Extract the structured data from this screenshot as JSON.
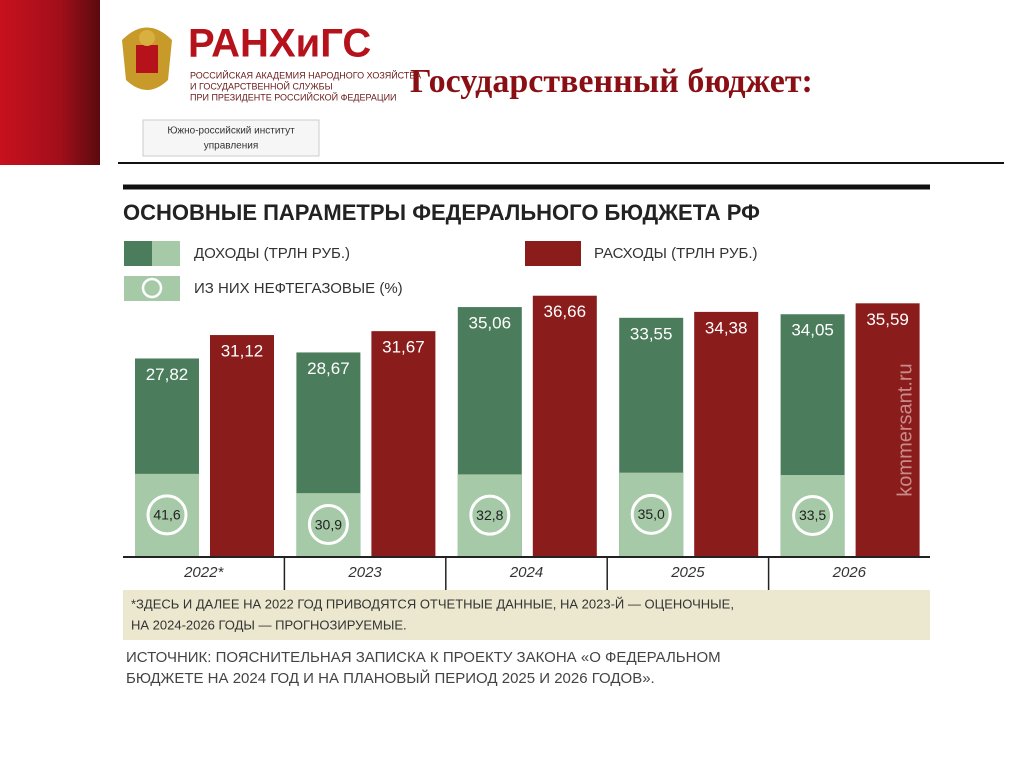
{
  "header": {
    "logo_title": "РАНХиГС",
    "logo_lines": [
      "РОССИЙСКАЯ АКАДЕМИЯ НАРОДНОГО ХОЗЯЙСТВА",
      "И ГОСУДАРСТВЕННОЙ СЛУЖБЫ",
      "ПРИ ПРЕЗИДЕНТЕ РОССИЙСКОЙ ФЕДЕРАЦИИ"
    ],
    "institute": [
      "Южно-российский институт",
      "управления"
    ],
    "slide_title": "Государственный бюджет:"
  },
  "chart_data": {
    "type": "bar",
    "title": "ОСНОВНЫЕ ПАРАМЕТРЫ ФЕДЕРАЛЬНОГО БЮДЖЕТА РФ",
    "categories": [
      "2022*",
      "2023",
      "2024",
      "2025",
      "2026"
    ],
    "series": [
      {
        "name": "ДОХОДЫ (ТРЛН РУБ.)",
        "color": "#4b7d5c",
        "values": [
          27.82,
          28.67,
          35.06,
          33.55,
          34.05
        ],
        "value_labels": [
          "27,82",
          "28,67",
          "35,06",
          "33,55",
          "34,05"
        ]
      },
      {
        "name": "РАСХОДЫ (ТРЛН РУБ.)",
        "color": "#8a1c1c",
        "values": [
          31.12,
          31.67,
          36.66,
          34.38,
          35.59
        ],
        "value_labels": [
          "31,12",
          "31,67",
          "36,66",
          "34,38",
          "35,59"
        ]
      },
      {
        "name": "ИЗ НИХ НЕФТЕГАЗОВЫЕ (%)",
        "color": "#a6c9a8",
        "values": [
          41.6,
          30.9,
          32.8,
          35.0,
          33.5
        ],
        "value_labels": [
          "41,6",
          "30,9",
          "32,8",
          "35,0",
          "33,5"
        ]
      }
    ],
    "watermark": "kommersant.ru",
    "footnote": [
      "*ЗДЕСЬ И ДАЛЕЕ НА 2022 ГОД ПРИВОДЯТСЯ ОТЧЕТНЫЕ ДАННЫЕ, НА 2023-Й — ОЦЕНОЧНЫЕ,",
      "НА 2024-2026 ГОДЫ — ПРОГНОЗИРУЕМЫЕ."
    ],
    "source": [
      "ИСТОЧНИК: ПОЯСНИТЕЛЬНАЯ ЗАПИСКА К ПРОЕКТУ ЗАКОНА «О ФЕДЕРАЛЬНОМ",
      "БЮДЖЕТЕ НА 2024 ГОД И НА ПЛАНОВЫЙ ПЕРИОД 2025 И 2026 ГОДОВ»."
    ]
  }
}
